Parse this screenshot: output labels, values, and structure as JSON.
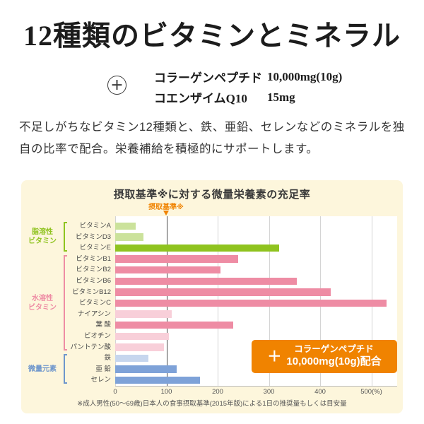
{
  "header": {
    "title": "12種類のビタミンとミネラル",
    "plus_icon": "＋",
    "supplements": [
      {
        "name": "コラーゲンペプチド",
        "amount": "10,000mg(10g)"
      },
      {
        "name": "コエンザイムQ10",
        "amount": "15mg"
      }
    ],
    "description": "不足しがちなビタミン12種類と、鉄、亜鉛、セレンなどのミネラルを独自の比率で配合。栄養補給を積極的にサポートします。"
  },
  "chart_data": {
    "type": "bar",
    "orientation": "horizontal",
    "title": "摂取基準※に対する微量栄養素の充足率",
    "standard_line": {
      "label": "摂取基準※",
      "value": 100,
      "color": "#f08300"
    },
    "xlim": [
      0,
      560
    ],
    "ticks": [
      0,
      100,
      200,
      300,
      400,
      500
    ],
    "tick_suffix": "(%)",
    "background": "#fdf6dc",
    "groups": [
      {
        "label": "脂溶性\nビタミン",
        "color": "#8fc31f",
        "bar_color": "#8fc31f",
        "bar_color_light": "#cbe29b",
        "bars": [
          {
            "label": "ビタミンA",
            "value": 40,
            "strong": false
          },
          {
            "label": "ビタミンD3",
            "value": 55,
            "strong": false
          },
          {
            "label": "ビタミンE",
            "value": 320,
            "strong": true
          }
        ]
      },
      {
        "label": "水溶性\nビタミン",
        "color": "#ee8ca4",
        "bar_color": "#ee8ca4",
        "bar_color_light": "#f8cfd9",
        "bars": [
          {
            "label": "ビタミンB1",
            "value": 240,
            "strong": true
          },
          {
            "label": "ビタミンB2",
            "value": 205,
            "strong": true
          },
          {
            "label": "ビタミンB6",
            "value": 355,
            "strong": true
          },
          {
            "label": "ビタミンB12",
            "value": 420,
            "strong": true
          },
          {
            "label": "ビタミンC",
            "value": 530,
            "strong": true
          },
          {
            "label": "ナイアシン",
            "value": 110,
            "strong": false
          },
          {
            "label": "葉 酸",
            "value": 230,
            "strong": true
          },
          {
            "label": "ビオチン",
            "value": 105,
            "strong": false
          },
          {
            "label": "パントテン酸",
            "value": 95,
            "strong": false
          }
        ]
      },
      {
        "label": "微量元素",
        "color": "#6e96cc",
        "bar_color": "#7ea2d8",
        "bar_color_light": "#c6d6ee",
        "bars": [
          {
            "label": "鉄",
            "value": 65,
            "strong": false
          },
          {
            "label": "亜 鉛",
            "value": 120,
            "strong": true
          },
          {
            "label": "セレン",
            "value": 165,
            "strong": true
          }
        ]
      }
    ],
    "badge": {
      "plus": "＋",
      "line1": "コラーゲンペプチド",
      "line2": "10,000mg(10g)配合",
      "bg": "#f08300"
    },
    "footnote": "※成人男性(50〜69歳)日本人の食事摂取基準(2015年版)による1日の推奨量もしくは目安量"
  }
}
